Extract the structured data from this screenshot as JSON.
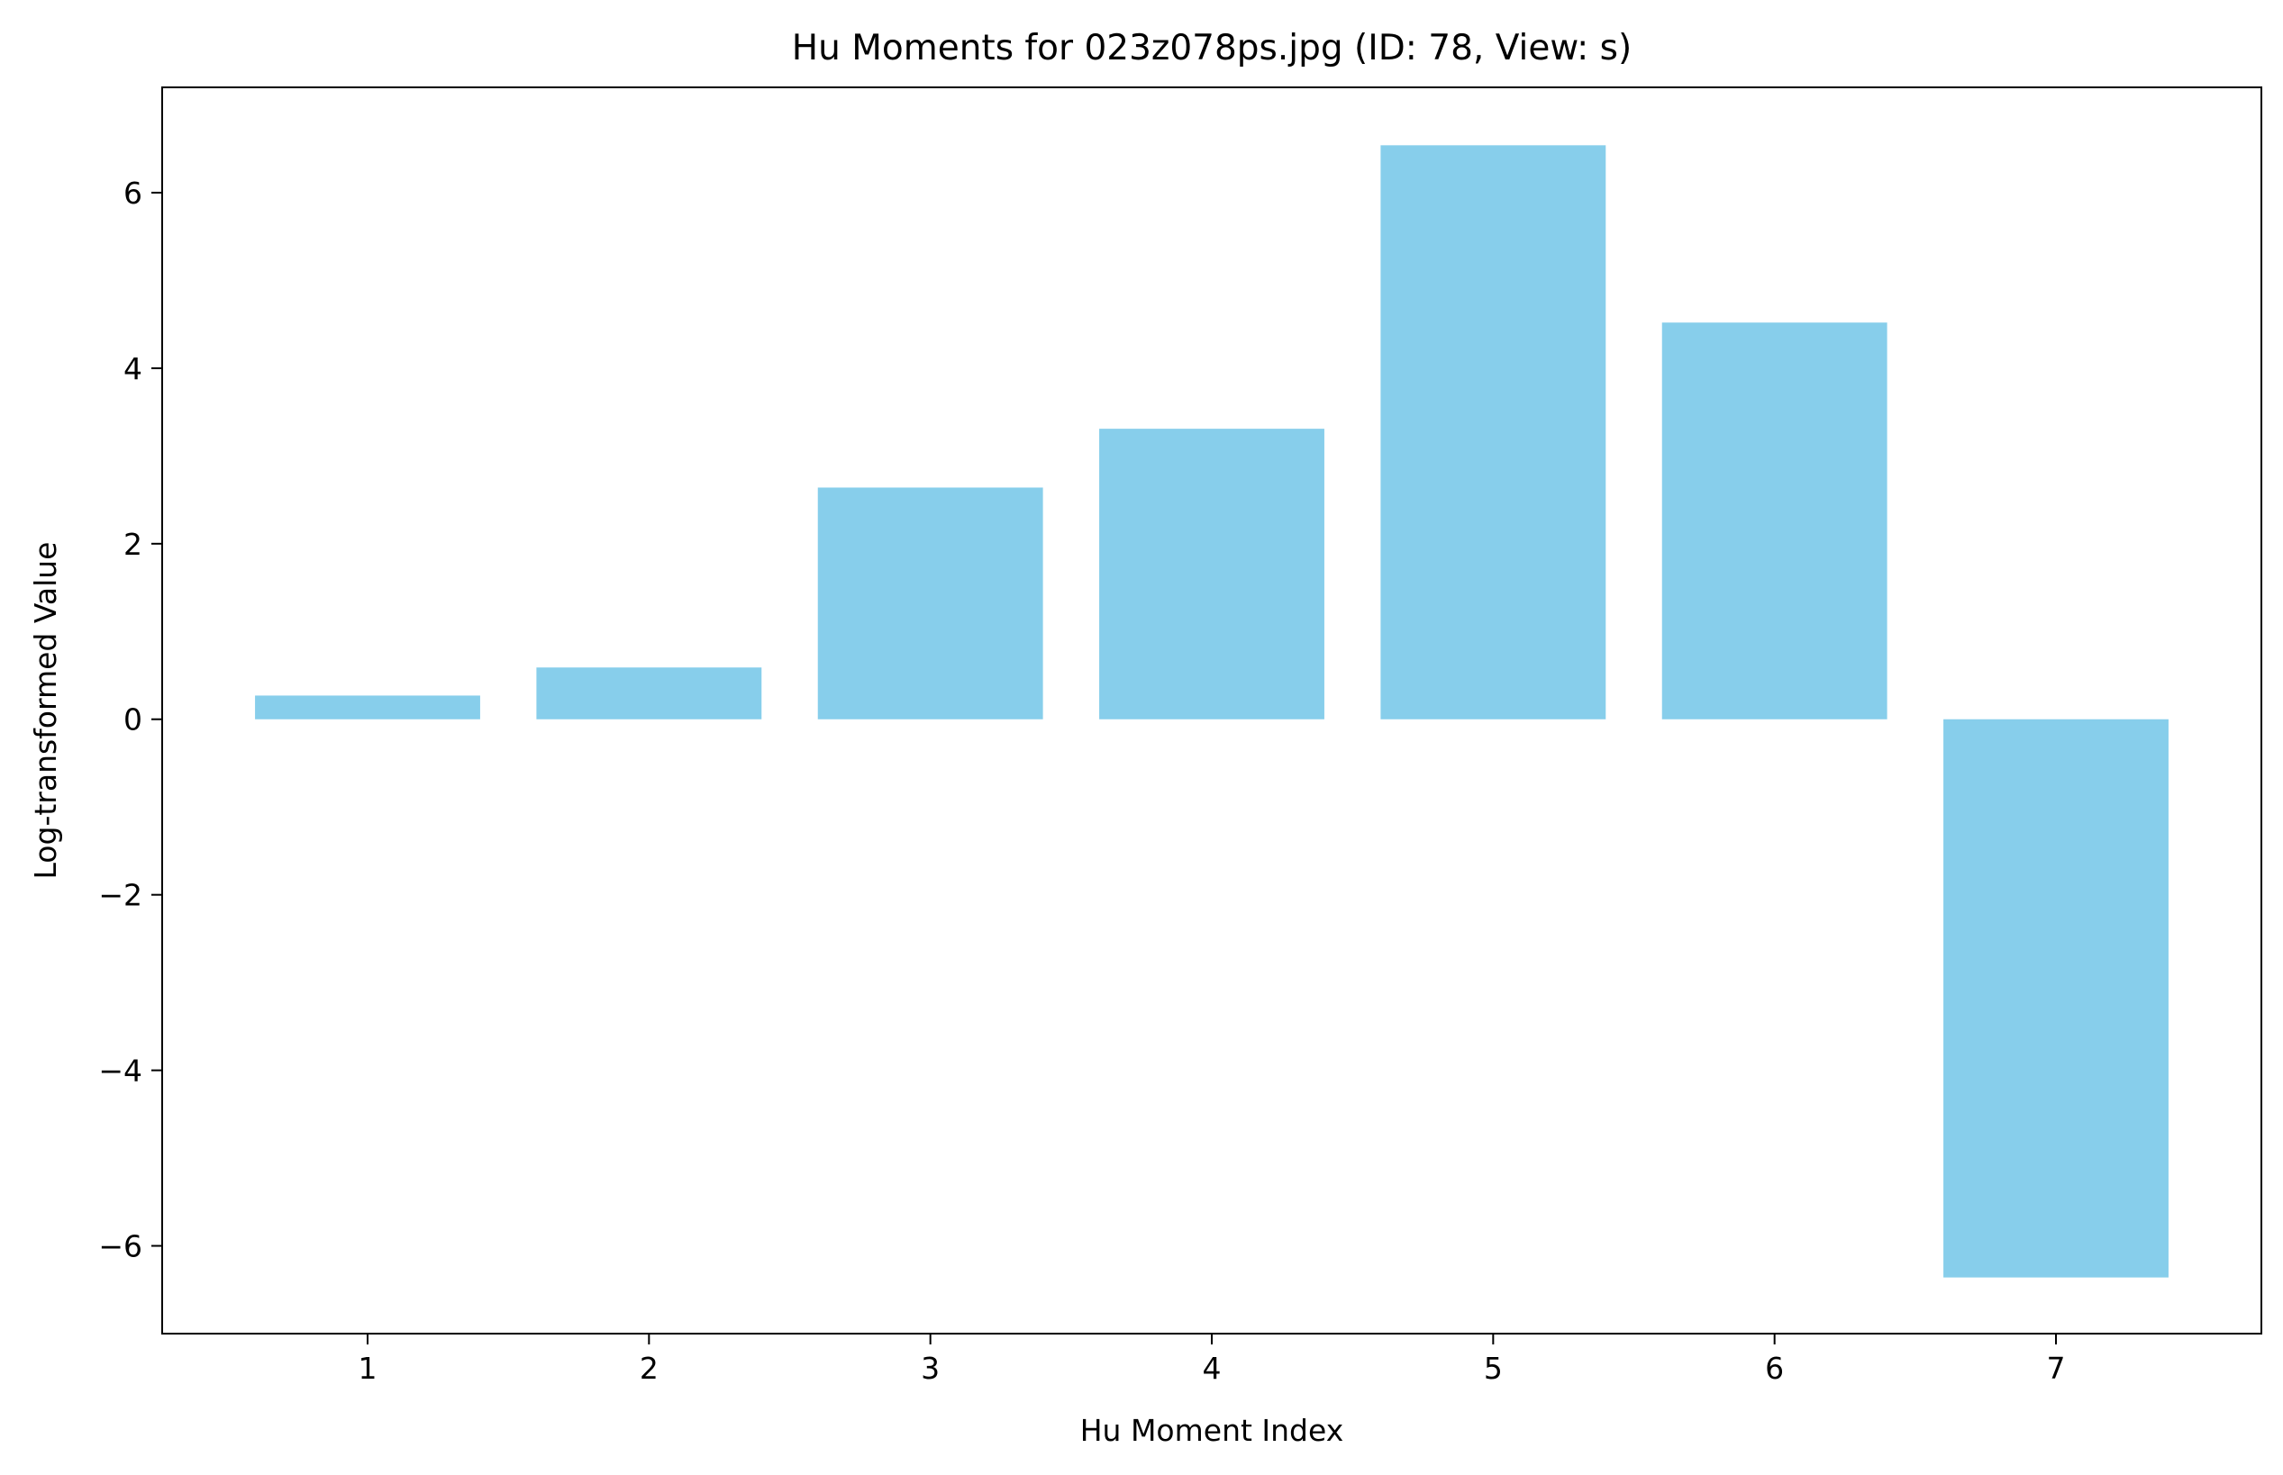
{
  "chart_data": {
    "type": "bar",
    "title": "Hu Moments for 023z078ps.jpg (ID: 78, View: s)",
    "xlabel": "Hu Moment Index",
    "ylabel": "Log-transformed Value",
    "categories": [
      "1",
      "2",
      "3",
      "4",
      "5",
      "6",
      "7"
    ],
    "values": [
      0.27,
      0.59,
      2.64,
      3.31,
      6.54,
      4.52,
      -6.36
    ],
    "xlim": [
      0.27,
      7.73
    ],
    "ylim": [
      -7.0,
      7.2
    ],
    "yticks": [
      6,
      4,
      2,
      0,
      -2,
      -4,
      -6
    ],
    "ytick_labels": [
      "6",
      "4",
      "2",
      "0",
      "−2",
      "−4",
      "−6"
    ],
    "bar_color": "#87CEEB",
    "grid": false,
    "legend": "none"
  }
}
